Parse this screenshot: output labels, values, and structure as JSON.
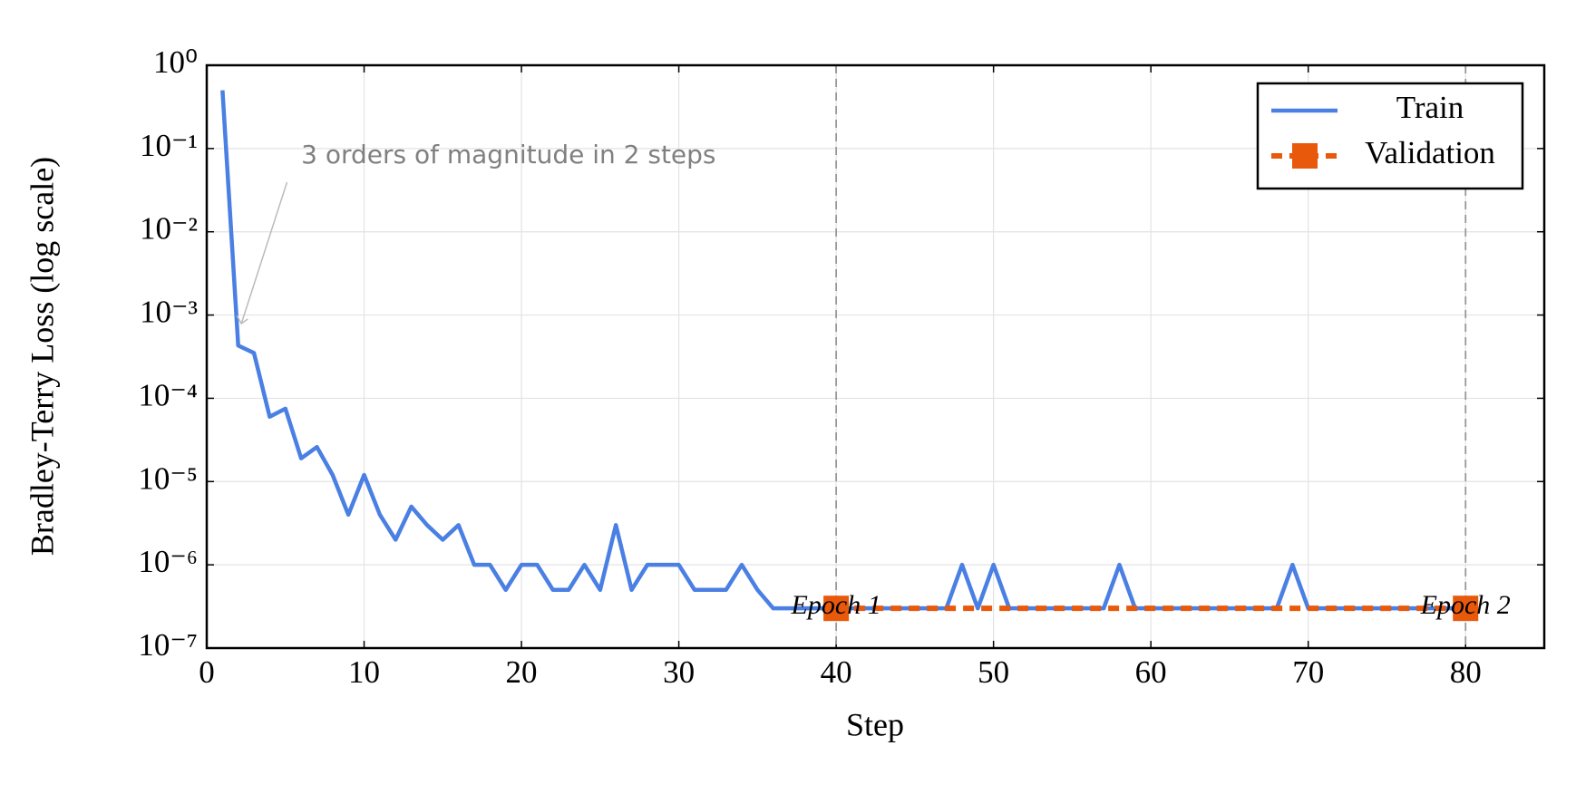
{
  "chart_data": {
    "type": "line",
    "xlabel": "Step",
    "ylabel": "Bradley-Terry Loss (log scale)",
    "xlim": [
      0,
      85
    ],
    "xticks": [
      0,
      10,
      20,
      30,
      40,
      50,
      60,
      70,
      80
    ],
    "ylim": [
      1e-07,
      1
    ],
    "yscale": "log",
    "yticks": [
      {
        "value": 1,
        "label": "10⁰"
      },
      {
        "value": 0.1,
        "label": "10⁻¹"
      },
      {
        "value": 0.01,
        "label": "10⁻²"
      },
      {
        "value": 0.001,
        "label": "10⁻³"
      },
      {
        "value": 0.0001,
        "label": "10⁻⁴"
      },
      {
        "value": 1e-05,
        "label": "10⁻⁵"
      },
      {
        "value": 1e-06,
        "label": "10⁻⁶"
      },
      {
        "value": 1e-07,
        "label": "10⁻⁷"
      }
    ],
    "grid": true,
    "legend": "upper right",
    "series": [
      {
        "name": "Train",
        "color": "#4a7fe3",
        "style": "solid",
        "x": [
          1,
          2,
          3,
          4,
          5,
          6,
          7,
          8,
          9,
          10,
          11,
          12,
          13,
          14,
          15,
          16,
          17,
          18,
          19,
          20,
          21,
          22,
          23,
          24,
          25,
          26,
          27,
          28,
          29,
          30,
          31,
          32,
          33,
          34,
          35,
          36,
          37,
          38,
          39,
          40,
          41,
          42,
          43,
          44,
          45,
          46,
          47,
          48,
          49,
          50,
          51,
          52,
          53,
          54,
          55,
          56,
          57,
          58,
          59,
          60,
          61,
          62,
          63,
          64,
          65,
          66,
          67,
          68,
          69,
          70,
          71,
          72,
          73,
          74,
          75,
          76,
          77,
          78,
          79,
          80
        ],
        "values": [
          0.5,
          0.00043,
          0.00035,
          6e-05,
          7.5e-05,
          1.9e-05,
          2.6e-05,
          1.2e-05,
          4e-06,
          1.2e-05,
          4e-06,
          2e-06,
          5e-06,
          3e-06,
          2e-06,
          3e-06,
          1e-06,
          1e-06,
          5e-07,
          1e-06,
          1e-06,
          5e-07,
          5e-07,
          1e-06,
          5e-07,
          3e-06,
          5e-07,
          1e-06,
          1e-06,
          1e-06,
          5e-07,
          5e-07,
          5e-07,
          1e-06,
          5e-07,
          3e-07,
          3e-07,
          3e-07,
          3e-07,
          3e-07,
          3e-07,
          3e-07,
          3e-07,
          3e-07,
          3e-07,
          3e-07,
          3e-07,
          1e-06,
          3e-07,
          1e-06,
          3e-07,
          3e-07,
          3e-07,
          3e-07,
          3e-07,
          3e-07,
          3e-07,
          1e-06,
          3e-07,
          3e-07,
          3e-07,
          3e-07,
          3e-07,
          3e-07,
          3e-07,
          3e-07,
          3e-07,
          3e-07,
          1e-06,
          3e-07,
          3e-07,
          3e-07,
          3e-07,
          3e-07,
          3e-07,
          3e-07,
          3e-07,
          3e-07,
          3e-07,
          3e-07
        ]
      },
      {
        "name": "Validation",
        "color": "#e8590c",
        "style": "dashed",
        "marker": "square",
        "x": [
          40,
          80
        ],
        "values": [
          3e-07,
          3e-07
        ]
      }
    ],
    "vlines": [
      {
        "x": 40,
        "label": "Epoch 1"
      },
      {
        "x": 80,
        "label": "Epoch 2"
      }
    ],
    "annotation": "3 orders of magnitude in 2 steps"
  }
}
